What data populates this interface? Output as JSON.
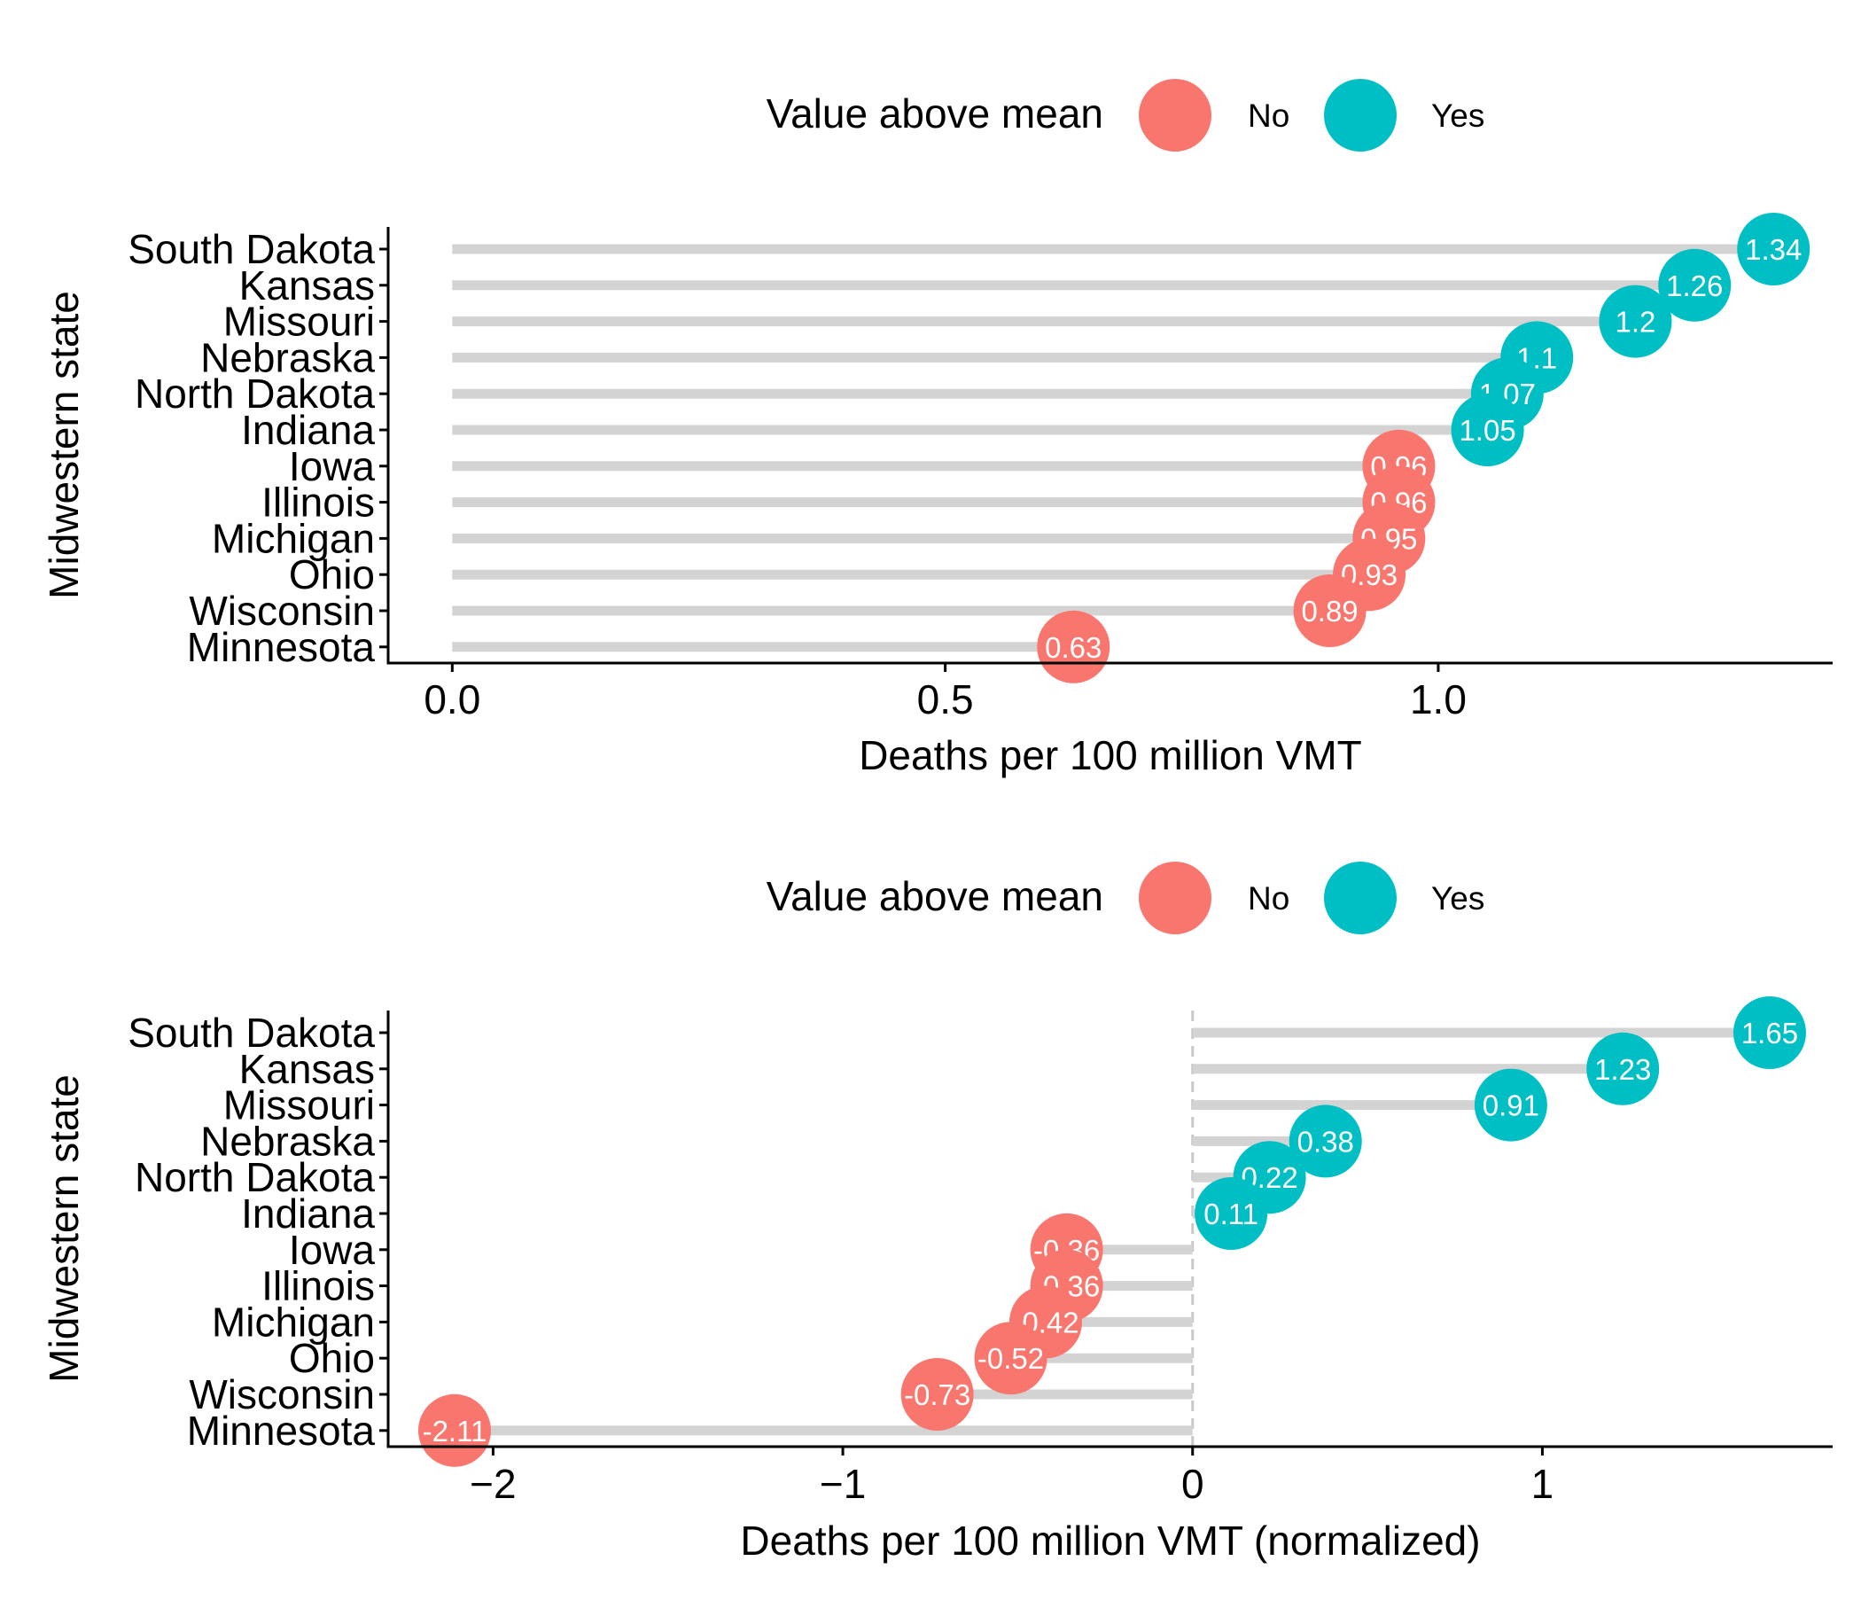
{
  "colors": {
    "no": "#F8766D",
    "yes": "#00BFC4",
    "stem": "#D3D3D3",
    "axis": "#000000",
    "zero_line": "#C8C8C8"
  },
  "chart_data": [
    {
      "type": "lollipop",
      "xlabel": "Deaths per 100 million VMT",
      "ylabel": "Midwestern state",
      "xlim": [
        -0.065,
        1.4
      ],
      "x_ticks": [
        "0.0",
        "0.5",
        "1.0"
      ],
      "x_tick_values": [
        0,
        0.5,
        1.0
      ],
      "legend": {
        "title": "Value above mean",
        "position": "top",
        "entries": [
          "No",
          "Yes"
        ]
      },
      "stem_origin": 0,
      "categories": [
        "South Dakota",
        "Kansas",
        "Missouri",
        "Nebraska",
        "North Dakota",
        "Indiana",
        "Iowa",
        "Illinois",
        "Michigan",
        "Ohio",
        "Wisconsin",
        "Minnesota"
      ],
      "values": [
        1.34,
        1.26,
        1.2,
        1.1,
        1.07,
        1.05,
        0.96,
        0.96,
        0.95,
        0.93,
        0.89,
        0.63
      ],
      "labels": [
        "1.34",
        "1.26",
        "1.2",
        "1.1",
        "1.07",
        "1.05",
        "0.96",
        "0.96",
        "0.95",
        "0.93",
        "0.89",
        "0.63"
      ],
      "above_mean": [
        "Yes",
        "Yes",
        "Yes",
        "Yes",
        "Yes",
        "Yes",
        "No",
        "No",
        "No",
        "No",
        "No",
        "No"
      ]
    },
    {
      "type": "lollipop",
      "xlabel": "Deaths per 100 million VMT (normalized)",
      "ylabel": "Midwestern state",
      "xlim": [
        -2.3,
        1.83
      ],
      "x_ticks": [
        "-2",
        "-1",
        "0",
        "1"
      ],
      "x_tick_values": [
        -2,
        -1,
        0,
        1
      ],
      "legend": {
        "title": "Value above mean",
        "position": "top",
        "entries": [
          "No",
          "Yes"
        ]
      },
      "stem_origin": 0,
      "zero_reference_line": true,
      "categories": [
        "South Dakota",
        "Kansas",
        "Missouri",
        "Nebraska",
        "North Dakota",
        "Indiana",
        "Iowa",
        "Illinois",
        "Michigan",
        "Ohio",
        "Wisconsin",
        "Minnesota"
      ],
      "values": [
        1.65,
        1.23,
        0.91,
        0.38,
        0.22,
        0.11,
        -0.36,
        -0.36,
        -0.42,
        -0.52,
        -0.73,
        -2.11
      ],
      "labels": [
        "1.65",
        "1.23",
        "0.91",
        "0.38",
        "0.22",
        "0.11",
        "-0.36",
        "-0.36",
        "-0.42",
        "-0.52",
        "-0.73",
        "-2.11"
      ],
      "above_mean": [
        "Yes",
        "Yes",
        "Yes",
        "Yes",
        "Yes",
        "Yes",
        "No",
        "No",
        "No",
        "No",
        "No",
        "No"
      ]
    }
  ]
}
